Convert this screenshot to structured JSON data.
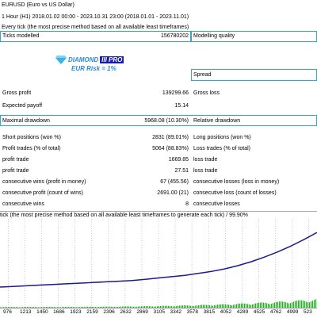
{
  "header": {
    "symbol": "EURUSD (Euro vs US Dollar)",
    "period": "1 Hour (H1) 2018.01.02 00:00 - 2023.10.31 23:00 (2018.01.01 - 2023.11.01)",
    "model": "Every tick (the most precise method based on all available least timeframes)"
  },
  "ticks": {
    "label": "Ticks modelled",
    "value": "156780202",
    "quality_label": "Modelling quality"
  },
  "logo": {
    "brand": "DIAMOND",
    "brand_box": "III PRO",
    "risk": "EUR Risk = 1%"
  },
  "spread_label": "Spread",
  "gross": {
    "profit_label": "Gross profit",
    "profit_value": "139299.66",
    "loss_label": "Gross loss"
  },
  "payoff": {
    "label": "Expected payoff",
    "value": "15.14"
  },
  "drawdown": {
    "label": "Maximal drawdown",
    "value": "5968.08 (10.30%)",
    "relative_label": "Relative drawdown"
  },
  "stats": [
    {
      "left": "Short positions (won %)",
      "value": "2831 (89.01%)",
      "right": "Long positions (won %)"
    },
    {
      "left": "Profit trades (% of total)",
      "value": "5064 (88.83%)",
      "right": "Loss trades (% of total)"
    },
    {
      "left": "profit trade",
      "value": "1669.85",
      "right": "loss trade"
    },
    {
      "left": "profit trade",
      "value": "27.51",
      "right": "loss trade"
    },
    {
      "left": "consecutive wins (profit in money)",
      "value": "67 (455.56)",
      "right": "consecutive losses (loss in money)"
    },
    {
      "left": "consecutive profit (count of wins)",
      "value": "2691.00 (21)",
      "right": "consecutive loss (count of losses)"
    },
    {
      "left": "consecutive wins",
      "value": "8",
      "right": "consecutive losses"
    }
  ],
  "chart_caption": "tick (the most precise method based on all available least timeframes to generate each tick) / 99.90%",
  "chart_data": {
    "type": "line",
    "title": "",
    "x_ticks": [
      "976",
      "1213",
      "1450",
      "1686",
      "1923",
      "2159",
      "2396",
      "2632",
      "2869",
      "3105",
      "3342",
      "3578",
      "3815",
      "4052",
      "4289",
      "4525",
      "4762",
      "4999",
      "523"
    ],
    "series": [
      {
        "values": [
          0,
          1,
          2,
          3,
          4,
          5,
          6,
          7,
          8,
          9,
          10,
          12,
          14,
          16,
          18,
          21,
          24,
          28,
          33,
          39,
          46,
          54,
          63,
          73,
          84
        ]
      }
    ],
    "ylim": [
      0,
      100
    ],
    "colors": {
      "line": "#1a1a8c",
      "volume": "#22b022"
    }
  }
}
